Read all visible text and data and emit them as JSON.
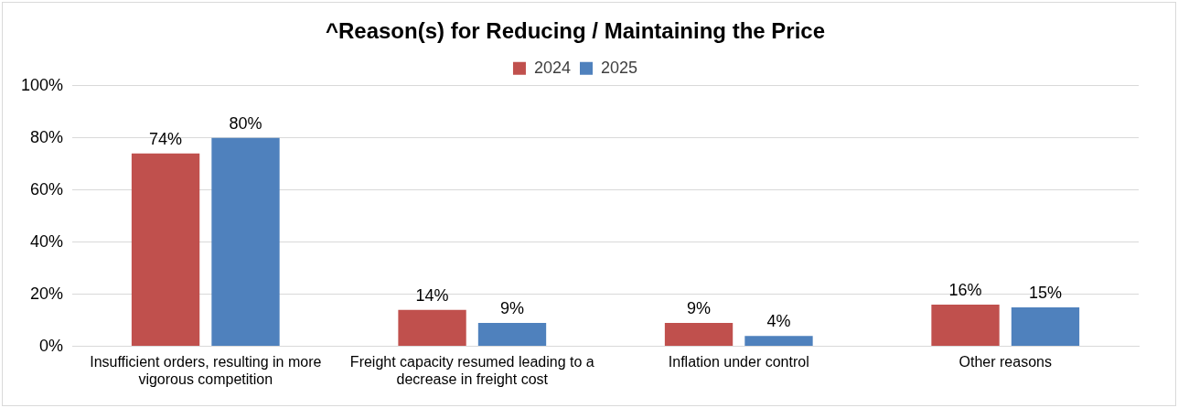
{
  "chart_data": {
    "type": "bar",
    "title": "^Reason(s) for Reducing / Maintaining the Price",
    "categories": [
      "Insufficient orders, resulting in more vigorous competition",
      "Freight capacity resumed leading to a decrease in freight cost",
      "Inflation under control",
      "Other reasons"
    ],
    "series": [
      {
        "name": "2024",
        "color": "#c0504d",
        "values": [
          74,
          14,
          9,
          16
        ],
        "value_labels": [
          "74%",
          "14%",
          "9%",
          "16%"
        ]
      },
      {
        "name": "2025",
        "color": "#4f81bd",
        "values": [
          80,
          9,
          4,
          15
        ],
        "value_labels": [
          "80%",
          "9%",
          "4%",
          "15%"
        ]
      }
    ],
    "ylim": [
      0,
      100
    ],
    "yticks": [
      {
        "value": 0,
        "label": "0%"
      },
      {
        "value": 20,
        "label": "20%"
      },
      {
        "value": 40,
        "label": "40%"
      },
      {
        "value": 60,
        "label": "60%"
      },
      {
        "value": 80,
        "label": "80%"
      },
      {
        "value": 100,
        "label": "100%"
      }
    ],
    "grid": "y",
    "legend": "top"
  }
}
